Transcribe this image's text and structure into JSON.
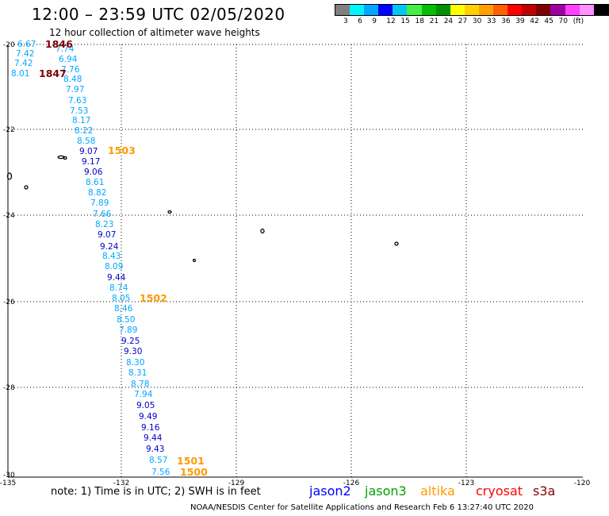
{
  "header": {
    "title": "12:00 – 23:59 UTC 02/05/2020",
    "subtitle": "12 hour collection of altimeter wave heights"
  },
  "legend": {
    "colors": [
      "#808080",
      "#00f5ff",
      "#00a8ff",
      "#0000ff",
      "#00c8f0",
      "#44ee44",
      "#00c000",
      "#009000",
      "#ffff00",
      "#ffd000",
      "#ffa000",
      "#ff6000",
      "#ff0000",
      "#c00000",
      "#800000",
      "#a000a0",
      "#ff40ff",
      "#ff90ff",
      "#000000"
    ],
    "labels": [
      "3",
      "6",
      "9",
      "12",
      "15",
      "18",
      "21",
      "24",
      "27",
      "30",
      "33",
      "36",
      "39",
      "42",
      "45",
      "70",
      "(ft)"
    ]
  },
  "map": {
    "lat_ticks": [
      "-20",
      "-22",
      "-24",
      "-26",
      "-28",
      "-30"
    ],
    "lon_ticks": [
      "-135",
      "-132",
      "-129",
      "-126",
      "-123",
      "-120"
    ],
    "readings": [
      {
        "v": "6.67",
        "c": "#00a8ff"
      },
      {
        "v": "7.74",
        "c": "#00a8ff"
      },
      {
        "v": "7.42",
        "c": "#00a8ff"
      },
      {
        "v": "6.94",
        "c": "#00a8ff"
      },
      {
        "v": "7.42",
        "c": "#00a8ff"
      },
      {
        "v": "7.76",
        "c": "#00a8ff"
      },
      {
        "v": "8.01",
        "c": "#00a8ff"
      },
      {
        "v": "8.48",
        "c": "#00a8ff"
      },
      {
        "v": "7.97",
        "c": "#00a8ff"
      },
      {
        "v": "7.63",
        "c": "#00a8ff"
      },
      {
        "v": "7.53",
        "c": "#00a8ff"
      },
      {
        "v": "8.17",
        "c": "#00a8ff"
      },
      {
        "v": "8.22",
        "c": "#00a8ff"
      },
      {
        "v": "8.58",
        "c": "#00a8ff"
      },
      {
        "v": "9.07",
        "c": "#0000c8"
      },
      {
        "v": "9.17",
        "c": "#0000c8"
      },
      {
        "v": "9.06",
        "c": "#0000c8"
      },
      {
        "v": "8.61",
        "c": "#00a8ff"
      },
      {
        "v": "8.82",
        "c": "#00a8ff"
      },
      {
        "v": "7.89",
        "c": "#00a8ff"
      },
      {
        "v": "7.66",
        "c": "#00a8ff"
      },
      {
        "v": "8.23",
        "c": "#00a8ff"
      },
      {
        "v": "9.07",
        "c": "#0000c8"
      },
      {
        "v": "9.24",
        "c": "#0000c8"
      },
      {
        "v": "8.43",
        "c": "#00a8ff"
      },
      {
        "v": "8.09",
        "c": "#00a8ff"
      },
      {
        "v": "9.44",
        "c": "#0000c8"
      },
      {
        "v": "8.74",
        "c": "#00a8ff"
      },
      {
        "v": "8.05",
        "c": "#00a8ff"
      },
      {
        "v": "8.46",
        "c": "#00a8ff"
      },
      {
        "v": "8.50",
        "c": "#00a8ff"
      },
      {
        "v": "7.89",
        "c": "#00a8ff"
      },
      {
        "v": "9.25",
        "c": "#0000c8"
      },
      {
        "v": "9.30",
        "c": "#0000c8"
      },
      {
        "v": "8.30",
        "c": "#00a8ff"
      },
      {
        "v": "8.31",
        "c": "#00a8ff"
      },
      {
        "v": "8.78",
        "c": "#00a8ff"
      },
      {
        "v": "7.94",
        "c": "#00a8ff"
      },
      {
        "v": "9.05",
        "c": "#0000c8"
      },
      {
        "v": "9.49",
        "c": "#0000c8"
      },
      {
        "v": "9.16",
        "c": "#0000c8"
      },
      {
        "v": "9.44",
        "c": "#0000c8"
      },
      {
        "v": "9.43",
        "c": "#0000c8"
      },
      {
        "v": "8.57",
        "c": "#00a8ff"
      },
      {
        "v": "7.56",
        "c": "#00a8ff"
      }
    ],
    "time_marks": [
      {
        "t": "1846",
        "c": "#800000"
      },
      {
        "t": "1847",
        "c": "#800000"
      },
      {
        "t": "1503",
        "c": "#ff9900"
      },
      {
        "t": "1502",
        "c": "#ff9900"
      },
      {
        "t": "1501",
        "c": "#ff9900"
      },
      {
        "t": "1500",
        "c": "#ff9900"
      }
    ]
  },
  "footer": {
    "note": "note:  1) Time is in UTC;  2) SWH is in feet",
    "satellites": [
      {
        "name": "jason2",
        "c": "#0000ff"
      },
      {
        "name": "jason3",
        "c": "#00a000"
      },
      {
        "name": "altika",
        "c": "#ff9900"
      },
      {
        "name": "cryosat",
        "c": "#ff0000"
      },
      {
        "name": "s3a",
        "c": "#800000"
      }
    ],
    "credit": "NOAA/NESDIS Center for Satellite Applications and Research    Feb  6 13:27:40 UTC 2020"
  }
}
